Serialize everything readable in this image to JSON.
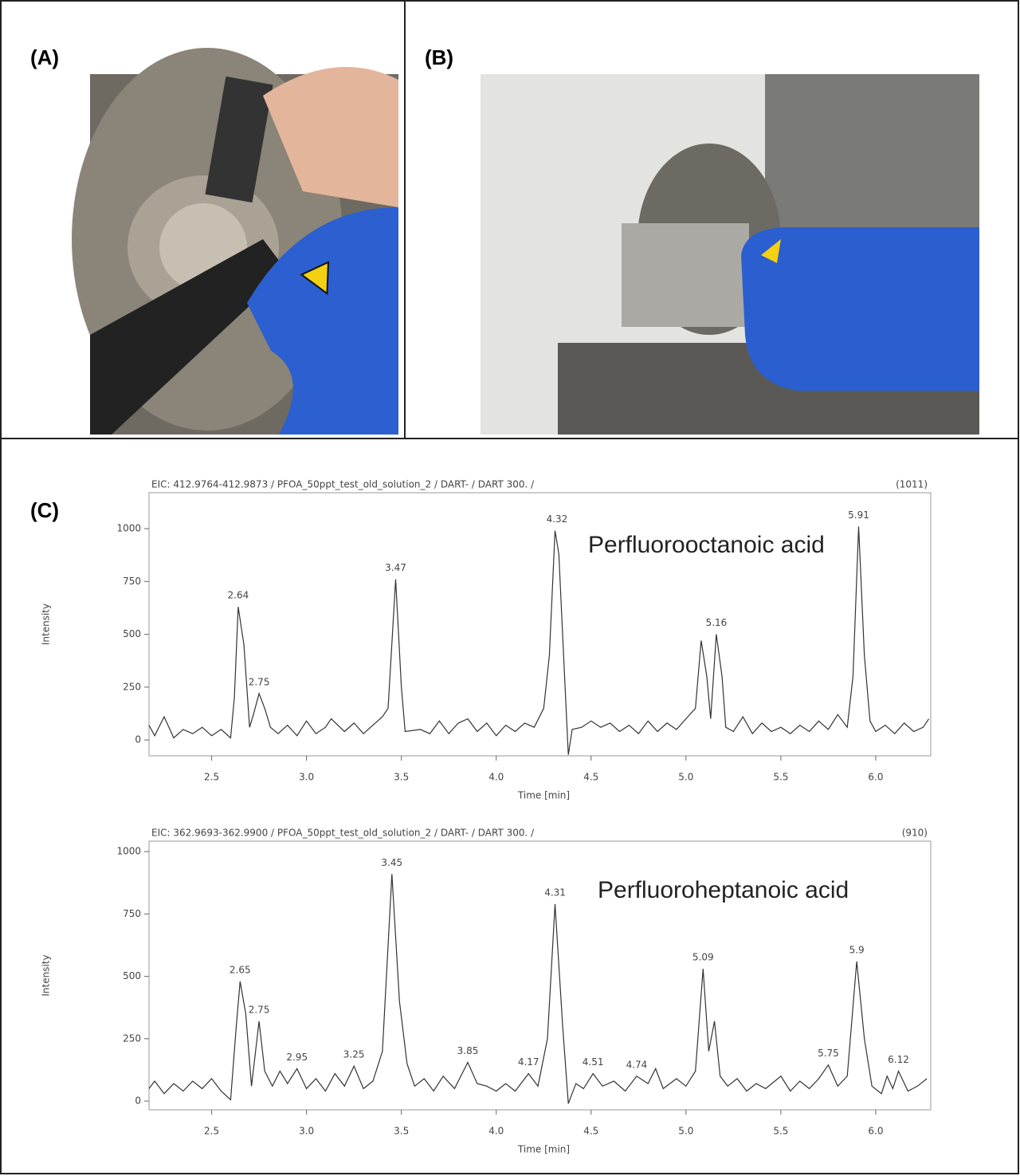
{
  "panel_labels": [
    "(A)",
    "(B)",
    "(C)"
  ],
  "chart_data": [
    {
      "type": "line",
      "title": "EIC: 412.9764-412.9873 / PFOA_50ppt_test_old_solution_2 / DART- / DART 300. /",
      "max_label": "(1011)",
      "annotation": "Perfluorooctanoic acid",
      "xlabel": "Time [min]",
      "ylabel": "Intensity",
      "color": "#333333",
      "xlim": [
        2.17,
        6.29
      ],
      "ylim": [
        -75,
        1170
      ],
      "xticks": [
        2.5,
        {
          "value": 3,
          "label": "3.0"
        },
        3.5,
        {
          "value": 4,
          "label": "4.0"
        },
        4.5,
        {
          "value": 5,
          "label": "5.0"
        },
        5.5,
        {
          "value": 6,
          "label": "6.0"
        }
      ],
      "yticks": [
        0,
        250,
        500,
        750,
        1000
      ],
      "x": [
        2.17,
        2.2,
        2.25,
        2.3,
        2.35,
        2.4,
        2.45,
        2.5,
        2.55,
        2.6,
        2.62,
        2.64,
        2.67,
        2.7,
        2.72,
        2.75,
        2.78,
        2.81,
        2.85,
        2.9,
        2.95,
        3.0,
        3.05,
        3.1,
        3.13,
        3.2,
        3.25,
        3.3,
        3.35,
        3.4,
        3.43,
        3.47,
        3.5,
        3.52,
        3.6,
        3.65,
        3.7,
        3.75,
        3.8,
        3.85,
        3.9,
        3.95,
        4.0,
        4.05,
        4.1,
        4.15,
        4.2,
        4.25,
        4.28,
        4.31,
        4.33,
        4.36,
        4.38,
        4.4,
        4.45,
        4.5,
        4.55,
        4.6,
        4.65,
        4.7,
        4.75,
        4.8,
        4.85,
        4.9,
        4.95,
        5.0,
        5.05,
        5.08,
        5.11,
        5.13,
        5.16,
        5.19,
        5.21,
        5.25,
        5.3,
        5.35,
        5.4,
        5.45,
        5.5,
        5.55,
        5.6,
        5.65,
        5.7,
        5.75,
        5.8,
        5.85,
        5.88,
        5.91,
        5.94,
        5.97,
        6.0,
        6.05,
        6.1,
        6.15,
        6.2,
        6.25,
        6.28
      ],
      "values": [
        70,
        20,
        110,
        10,
        50,
        30,
        60,
        20,
        50,
        10,
        200,
        630,
        450,
        60,
        120,
        220,
        150,
        60,
        30,
        70,
        20,
        90,
        30,
        60,
        100,
        40,
        80,
        30,
        70,
        110,
        150,
        760,
        250,
        40,
        50,
        30,
        90,
        30,
        80,
        100,
        40,
        80,
        20,
        70,
        40,
        80,
        60,
        150,
        400,
        990,
        880,
        300,
        -70,
        50,
        60,
        90,
        60,
        80,
        40,
        70,
        30,
        90,
        40,
        80,
        50,
        100,
        150,
        470,
        300,
        100,
        500,
        300,
        60,
        40,
        110,
        30,
        80,
        40,
        60,
        30,
        70,
        40,
        90,
        50,
        120,
        60,
        300,
        1010,
        400,
        90,
        40,
        70,
        30,
        80,
        40,
        60,
        100
      ],
      "peaks": [
        {
          "time": 2.64,
          "intensity": 630
        },
        {
          "time": 2.75,
          "intensity": 220
        },
        {
          "time": 3.47,
          "intensity": 760
        },
        {
          "time": 4.32,
          "intensity": 990
        },
        {
          "time": 5.16,
          "intensity": 500
        },
        {
          "time": 5.91,
          "intensity": 1010
        }
      ]
    },
    {
      "type": "line",
      "title": "EIC: 362.9693-362.9900 / PFOA_50ppt_test_old_solution_2 / DART- / DART 300. /",
      "max_label": "(910)",
      "annotation": "Perfluoroheptanoic acid",
      "xlabel": "Time [min]",
      "ylabel": "Intensity",
      "color": "#333333",
      "xlim": [
        2.17,
        6.29
      ],
      "ylim": [
        -35,
        1042
      ],
      "xticks": [
        2.5,
        {
          "value": 3,
          "label": "3.0"
        },
        3.5,
        {
          "value": 4,
          "label": "4.0"
        },
        4.5,
        {
          "value": 5,
          "label": "5.0"
        },
        5.5,
        {
          "value": 6,
          "label": "6.0"
        }
      ],
      "yticks": [
        0,
        250,
        500,
        750,
        1000
      ],
      "x": [
        2.17,
        2.2,
        2.25,
        2.3,
        2.35,
        2.4,
        2.45,
        2.5,
        2.55,
        2.6,
        2.63,
        2.65,
        2.68,
        2.71,
        2.75,
        2.78,
        2.82,
        2.86,
        2.9,
        2.95,
        3.0,
        3.05,
        3.1,
        3.15,
        3.2,
        3.25,
        3.3,
        3.35,
        3.4,
        3.45,
        3.49,
        3.53,
        3.57,
        3.62,
        3.67,
        3.72,
        3.78,
        3.85,
        3.9,
        3.95,
        4.0,
        4.05,
        4.1,
        4.17,
        4.22,
        4.27,
        4.31,
        4.35,
        4.38,
        4.42,
        4.46,
        4.51,
        4.56,
        4.62,
        4.68,
        4.74,
        4.8,
        4.84,
        4.88,
        4.95,
        5.0,
        5.05,
        5.09,
        5.12,
        5.15,
        5.18,
        5.22,
        5.27,
        5.32,
        5.37,
        5.42,
        5.5,
        5.55,
        5.6,
        5.65,
        5.7,
        5.75,
        5.8,
        5.85,
        5.9,
        5.94,
        5.98,
        6.03,
        6.06,
        6.09,
        6.12,
        6.17,
        6.22,
        6.27
      ],
      "values": [
        50,
        80,
        30,
        70,
        40,
        80,
        50,
        90,
        40,
        5,
        300,
        480,
        350,
        60,
        320,
        120,
        60,
        120,
        70,
        130,
        50,
        90,
        40,
        110,
        60,
        140,
        50,
        80,
        200,
        910,
        400,
        150,
        60,
        90,
        40,
        100,
        50,
        155,
        70,
        60,
        40,
        70,
        40,
        110,
        60,
        250,
        790,
        300,
        -10,
        70,
        50,
        110,
        60,
        80,
        40,
        100,
        70,
        130,
        50,
        90,
        60,
        120,
        530,
        200,
        320,
        100,
        60,
        90,
        40,
        70,
        50,
        100,
        40,
        80,
        50,
        90,
        145,
        60,
        100,
        560,
        250,
        60,
        30,
        100,
        50,
        120,
        40,
        60,
        90
      ],
      "peaks": [
        {
          "time": 2.65,
          "intensity": 480
        },
        {
          "time": 2.75,
          "intensity": 320
        },
        {
          "time": 2.95,
          "intensity": 130
        },
        {
          "time": 3.25,
          "intensity": 140
        },
        {
          "time": 3.45,
          "intensity": 910
        },
        {
          "time": 3.85,
          "intensity": 155
        },
        {
          "time": 4.17,
          "intensity": 110
        },
        {
          "time": 4.31,
          "intensity": 790
        },
        {
          "time": 4.51,
          "intensity": 110
        },
        {
          "time": 4.74,
          "intensity": 100
        },
        {
          "time": 5.09,
          "intensity": 530
        },
        {
          "time": 5.75,
          "intensity": 145
        },
        {
          "time": 5.9,
          "intensity": 560
        },
        {
          "time": 6.12,
          "intensity": 120
        }
      ]
    }
  ]
}
